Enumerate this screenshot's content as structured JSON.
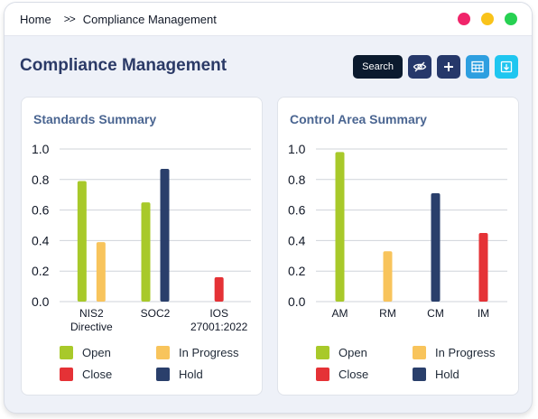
{
  "breadcrumb": {
    "home": "Home",
    "separator": ">>",
    "current": "Compliance Management"
  },
  "window_controls": {
    "colors": [
      "#f0256a",
      "#f9c31a",
      "#27d152"
    ]
  },
  "page": {
    "title": "Compliance Management"
  },
  "toolbar": {
    "search_label": "Search",
    "buttons": [
      {
        "icon": "eye-slash-icon",
        "color": "#26386a"
      },
      {
        "icon": "plus-icon",
        "color": "#26386a"
      },
      {
        "icon": "table-icon",
        "color": "#2e9fe0"
      },
      {
        "icon": "download-icon",
        "color": "#1fc6f0"
      }
    ]
  },
  "legend": [
    {
      "label": "Open",
      "color": "#a8c92a"
    },
    {
      "label": "In Progress",
      "color": "#f8c45c"
    },
    {
      "label": "Close",
      "color": "#e53236"
    },
    {
      "label": "Hold",
      "color": "#2a3f6b"
    }
  ],
  "chart_data": [
    {
      "type": "bar",
      "title": "Standards Summary",
      "categories": [
        "NIS2 Directive",
        "SOC2",
        "IOS 27001:2022"
      ],
      "category_lines": [
        [
          "NIS2",
          "Directive"
        ],
        [
          "SOC2"
        ],
        [
          "IOS",
          "27001:2022"
        ]
      ],
      "yticks": [
        "0.0",
        "0.2",
        "0.4",
        "0.6",
        "0.8",
        "1.0"
      ],
      "ylim": [
        0,
        1
      ],
      "grid": true,
      "legend_position": "bottom",
      "series": [
        {
          "name": "Open",
          "color": "#a8c92a",
          "values": [
            0.79,
            0.65,
            0
          ]
        },
        {
          "name": "In Progress",
          "color": "#f8c45c",
          "values": [
            0.39,
            0,
            0
          ]
        },
        {
          "name": "Close",
          "color": "#e53236",
          "values": [
            0,
            0,
            0.16
          ]
        },
        {
          "name": "Hold",
          "color": "#2a3f6b",
          "values": [
            0,
            0.87,
            0
          ]
        }
      ]
    },
    {
      "type": "bar",
      "title": "Control Area Summary",
      "categories": [
        "AM",
        "RM",
        "CM",
        "IM"
      ],
      "category_lines": [
        [
          "AM"
        ],
        [
          "RM"
        ],
        [
          "CM"
        ],
        [
          "IM"
        ]
      ],
      "yticks": [
        "0.0",
        "0.2",
        "0.4",
        "0.6",
        "0.8",
        "1.0"
      ],
      "ylim": [
        0,
        1
      ],
      "grid": true,
      "legend_position": "bottom",
      "series": [
        {
          "name": "Open",
          "color": "#a8c92a",
          "values": [
            0.98,
            0,
            0,
            0
          ]
        },
        {
          "name": "In Progress",
          "color": "#f8c45c",
          "values": [
            0,
            0.33,
            0,
            0
          ]
        },
        {
          "name": "Close",
          "color": "#e53236",
          "values": [
            0,
            0,
            0,
            0.45
          ]
        },
        {
          "name": "Hold",
          "color": "#2a3f6b",
          "values": [
            0,
            0,
            0.71,
            0
          ]
        }
      ]
    }
  ]
}
